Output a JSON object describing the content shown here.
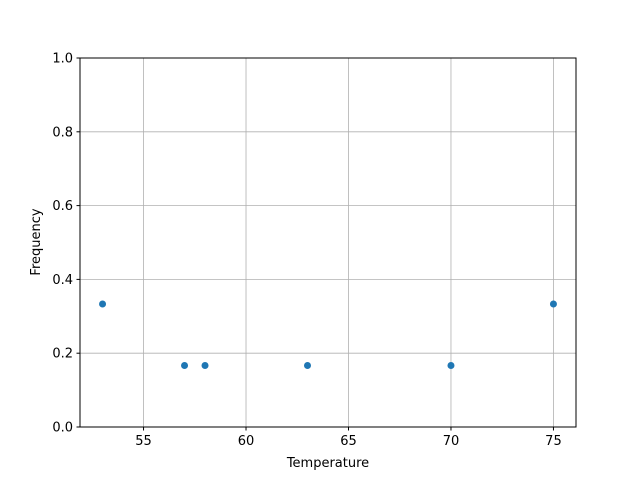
{
  "chart_data": {
    "type": "scatter",
    "title": "",
    "xlabel": "Temperature",
    "ylabel": "Frequency",
    "xlim": [
      51.9,
      76.1
    ],
    "ylim": [
      0,
      1
    ],
    "xticks": [
      55,
      60,
      65,
      70,
      75
    ],
    "xtick_labels": [
      "55",
      "60",
      "65",
      "70",
      "75"
    ],
    "yticks": [
      0,
      0.2,
      0.4,
      0.6,
      0.8,
      1.0
    ],
    "ytick_labels": [
      "0.0",
      "0.2",
      "0.4",
      "0.6",
      "0.8",
      "1.0"
    ],
    "grid": true,
    "color": "#1f77b4",
    "x": [
      53,
      57,
      58,
      63,
      70,
      75
    ],
    "y": [
      0.3333,
      0.1667,
      0.1667,
      0.1667,
      0.1667,
      0.3333
    ]
  }
}
